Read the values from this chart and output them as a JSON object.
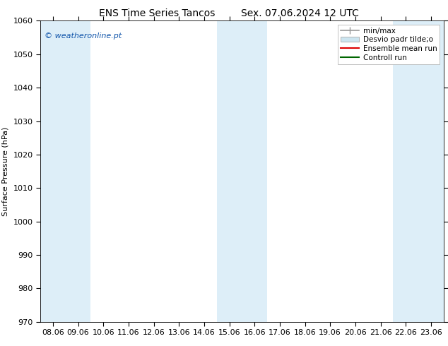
{
  "title1": "ENS Time Series Tancos",
  "title2": "Sex. 07.06.2024 12 UTC",
  "ylabel": "Surface Pressure (hPa)",
  "ylim": [
    970,
    1060
  ],
  "yticks": [
    970,
    980,
    990,
    1000,
    1010,
    1020,
    1030,
    1040,
    1050,
    1060
  ],
  "xlabels": [
    "08.06",
    "09.06",
    "10.06",
    "11.06",
    "12.06",
    "13.06",
    "14.06",
    "15.06",
    "16.06",
    "17.06",
    "18.06",
    "19.06",
    "20.06",
    "21.06",
    "22.06",
    "23.06"
  ],
  "n_ticks": 16,
  "shaded_bands": [
    0,
    1,
    7,
    8,
    14,
    15
  ],
  "band_color": "#ddeef8",
  "background_color": "#ffffff",
  "plot_bg_color": "#ffffff",
  "watermark": "© weatheronline.pt",
  "watermark_color": "#1155aa",
  "legend_items": [
    "min/max",
    "Desvio padr tilde;o",
    "Ensemble mean run",
    "Controll run"
  ],
  "minmax_color": "#999999",
  "desvio_color": "#cce5f0",
  "ens_color": "#dd0000",
  "ctrl_color": "#006600",
  "title_fontsize": 10,
  "label_fontsize": 8,
  "tick_fontsize": 8,
  "legend_fontsize": 7.5
}
